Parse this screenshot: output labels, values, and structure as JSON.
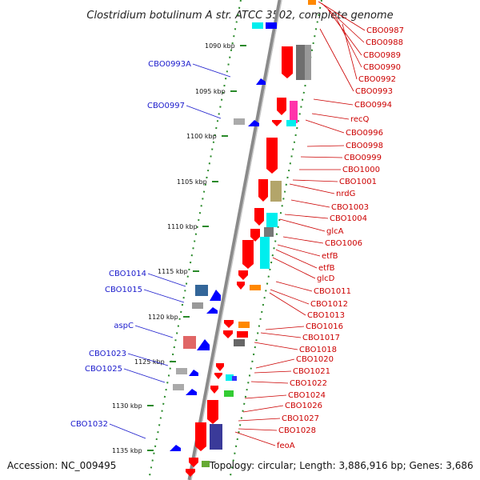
{
  "title": "Clostridium botulinum A str. ATCC 3502, complete genome",
  "footer": {
    "accession": "Accession: NC_009495",
    "topology": "Topology: circular; Length: 3,886,916 bp; Genes: 3,686"
  },
  "colors": {
    "forward_gene_label": "#1a1acc",
    "reverse_gene_label": "#cc0000",
    "backbone": "#888888",
    "tick": "#2a8a2a",
    "gene_default": "#ff0000"
  },
  "kbp_ticks": [
    "1090 kbp",
    "1095 kbp",
    "1100 kbp",
    "1105 kbp",
    "1110 kbp",
    "1115 kbp",
    "1120 kbp",
    "1125 kbp",
    "1130 kbp",
    "1135 kbp"
  ],
  "forward_labels": [
    "CBO0993A",
    "CBO0997",
    "CBO1014",
    "CBO1015",
    "aspC",
    "CBO1023",
    "CBO1025",
    "CBO1032"
  ],
  "reverse_labels": [
    "CBO0987",
    "CBO0988",
    "CBO0989",
    "CBO0990",
    "CBO0992",
    "CBO0993",
    "CBO0994",
    "recQ",
    "CBO0996",
    "CBO0998",
    "CBO0999",
    "CBO1000",
    "CBO1001",
    "nrdG",
    "CBO1003",
    "CBO1004",
    "glcA",
    "CBO1006",
    "etfB",
    "etfB",
    "glcD",
    "CBO1011",
    "CBO1012",
    "CBO1013",
    "CBO1016",
    "CBO1017",
    "CBO1018",
    "CBO1020",
    "CBO1021",
    "CBO1022",
    "CBO1024",
    "CBO1026",
    "CBO1027",
    "CBO1028",
    "feoA"
  ]
}
